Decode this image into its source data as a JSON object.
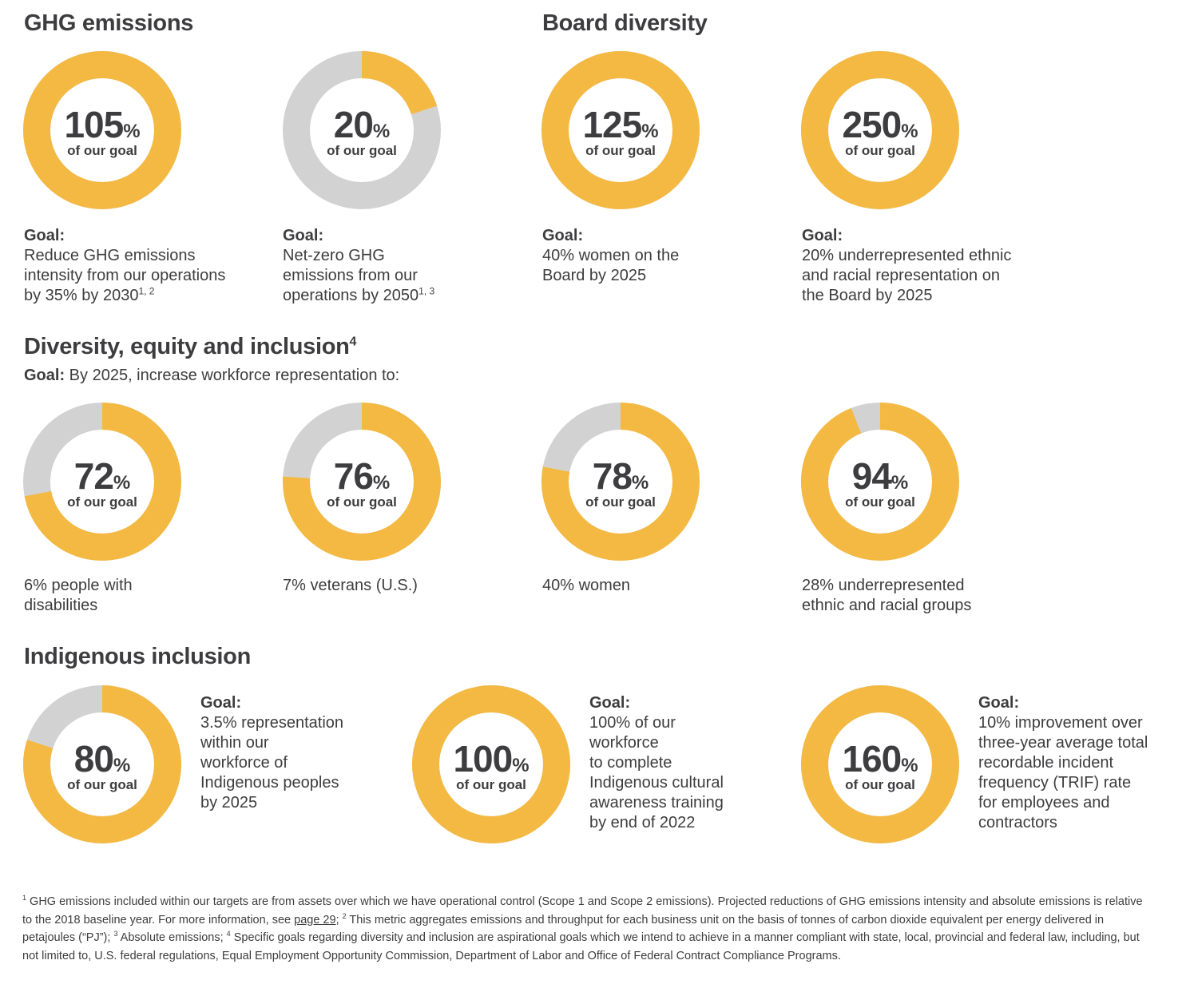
{
  "colors": {
    "accent": "#f4b942",
    "track": "#d2d2d2",
    "text": "#3d3d3f"
  },
  "sections": {
    "ghg": "GHG emissions",
    "board": "Board diversity",
    "dei": "Diversity, equity and inclusion",
    "dei_footnote": "4",
    "dei_goal_label": "Goal:",
    "dei_goal_text": " By 2025, increase workforce representation to:",
    "indigenous": "Indigenous inclusion"
  },
  "captions": {
    "goal_label": "Goal:",
    "ghg1": "Reduce GHG emissions\nintensity from our operations\nby 35% by 2030",
    "ghg1_sup": "1, 2",
    "ghg2": "Net-zero GHG\nemissions from our\noperations by 2050",
    "ghg2_sup": "1, 3",
    "board1": "40% women on the\nBoard by 2025",
    "board2": "20% underrepresented ethnic\nand racial representation on\nthe Board by 2025",
    "dei1": "6% people with\ndisabilities",
    "dei2": "7% veterans (U.S.)",
    "dei3": "40% women",
    "dei4": "28% underrepresented\nethnic and racial groups",
    "ind1": "3.5% representation\nwithin our\nworkforce of\nIndigenous peoples\nby 2025",
    "ind2": "100% of our\nworkforce\nto complete\nIndigenous cultural\nawareness training\nby end of 2022",
    "ind3": "10% improvement over\nthree-year average total\nrecordable incident\nfrequency (TRIF) rate\nfor employees and\ncontractors"
  },
  "footnote": {
    "s1": "1",
    "p1": " GHG emissions included within our targets are from assets over which we have operational control (Scope 1 and Scope 2 emissions). Projected reductions of GHG emissions intensity and absolute emissions is relative to the 2018 baseline year. For more information, see ",
    "link": "page 29",
    "p2": "; ",
    "s2": "2",
    "p3": " This metric aggregates emissions and throughput for each business unit on the basis of tonnes of carbon dioxide equivalent per energy delivered in petajoules (“PJ”); ",
    "s3": "3",
    "p4": " Absolute emissions; ",
    "s4": "4",
    "p5": " Specific goals regarding diversity and inclusion are aspirational goals which we intend to achieve in a manner compliant with state, local, provincial and federal law, including, but not limited to, U.S. federal regulations, Equal Employment Opportunity Commission, Department of Labor and Office of Federal Contract Compliance Programs."
  },
  "chart_data": [
    {
      "type": "pie",
      "values": [
        105
      ],
      "unit": "%",
      "label": "of our goal"
    },
    {
      "type": "pie",
      "values": [
        20
      ],
      "unit": "%",
      "label": "of our goal"
    },
    {
      "type": "pie",
      "values": [
        125
      ],
      "unit": "%",
      "label": "of our goal"
    },
    {
      "type": "pie",
      "values": [
        250
      ],
      "unit": "%",
      "label": "of our goal"
    },
    {
      "type": "pie",
      "values": [
        72
      ],
      "unit": "%",
      "label": "of our goal"
    },
    {
      "type": "pie",
      "values": [
        76
      ],
      "unit": "%",
      "label": "of our goal"
    },
    {
      "type": "pie",
      "values": [
        78
      ],
      "unit": "%",
      "label": "of our goal"
    },
    {
      "type": "pie",
      "values": [
        94
      ],
      "unit": "%",
      "label": "of our goal"
    },
    {
      "type": "pie",
      "values": [
        80
      ],
      "unit": "%",
      "label": "of our goal"
    },
    {
      "type": "pie",
      "values": [
        100
      ],
      "unit": "%",
      "label": "of our goal"
    },
    {
      "type": "pie",
      "values": [
        160
      ],
      "unit": "%",
      "label": "of our goal"
    }
  ]
}
